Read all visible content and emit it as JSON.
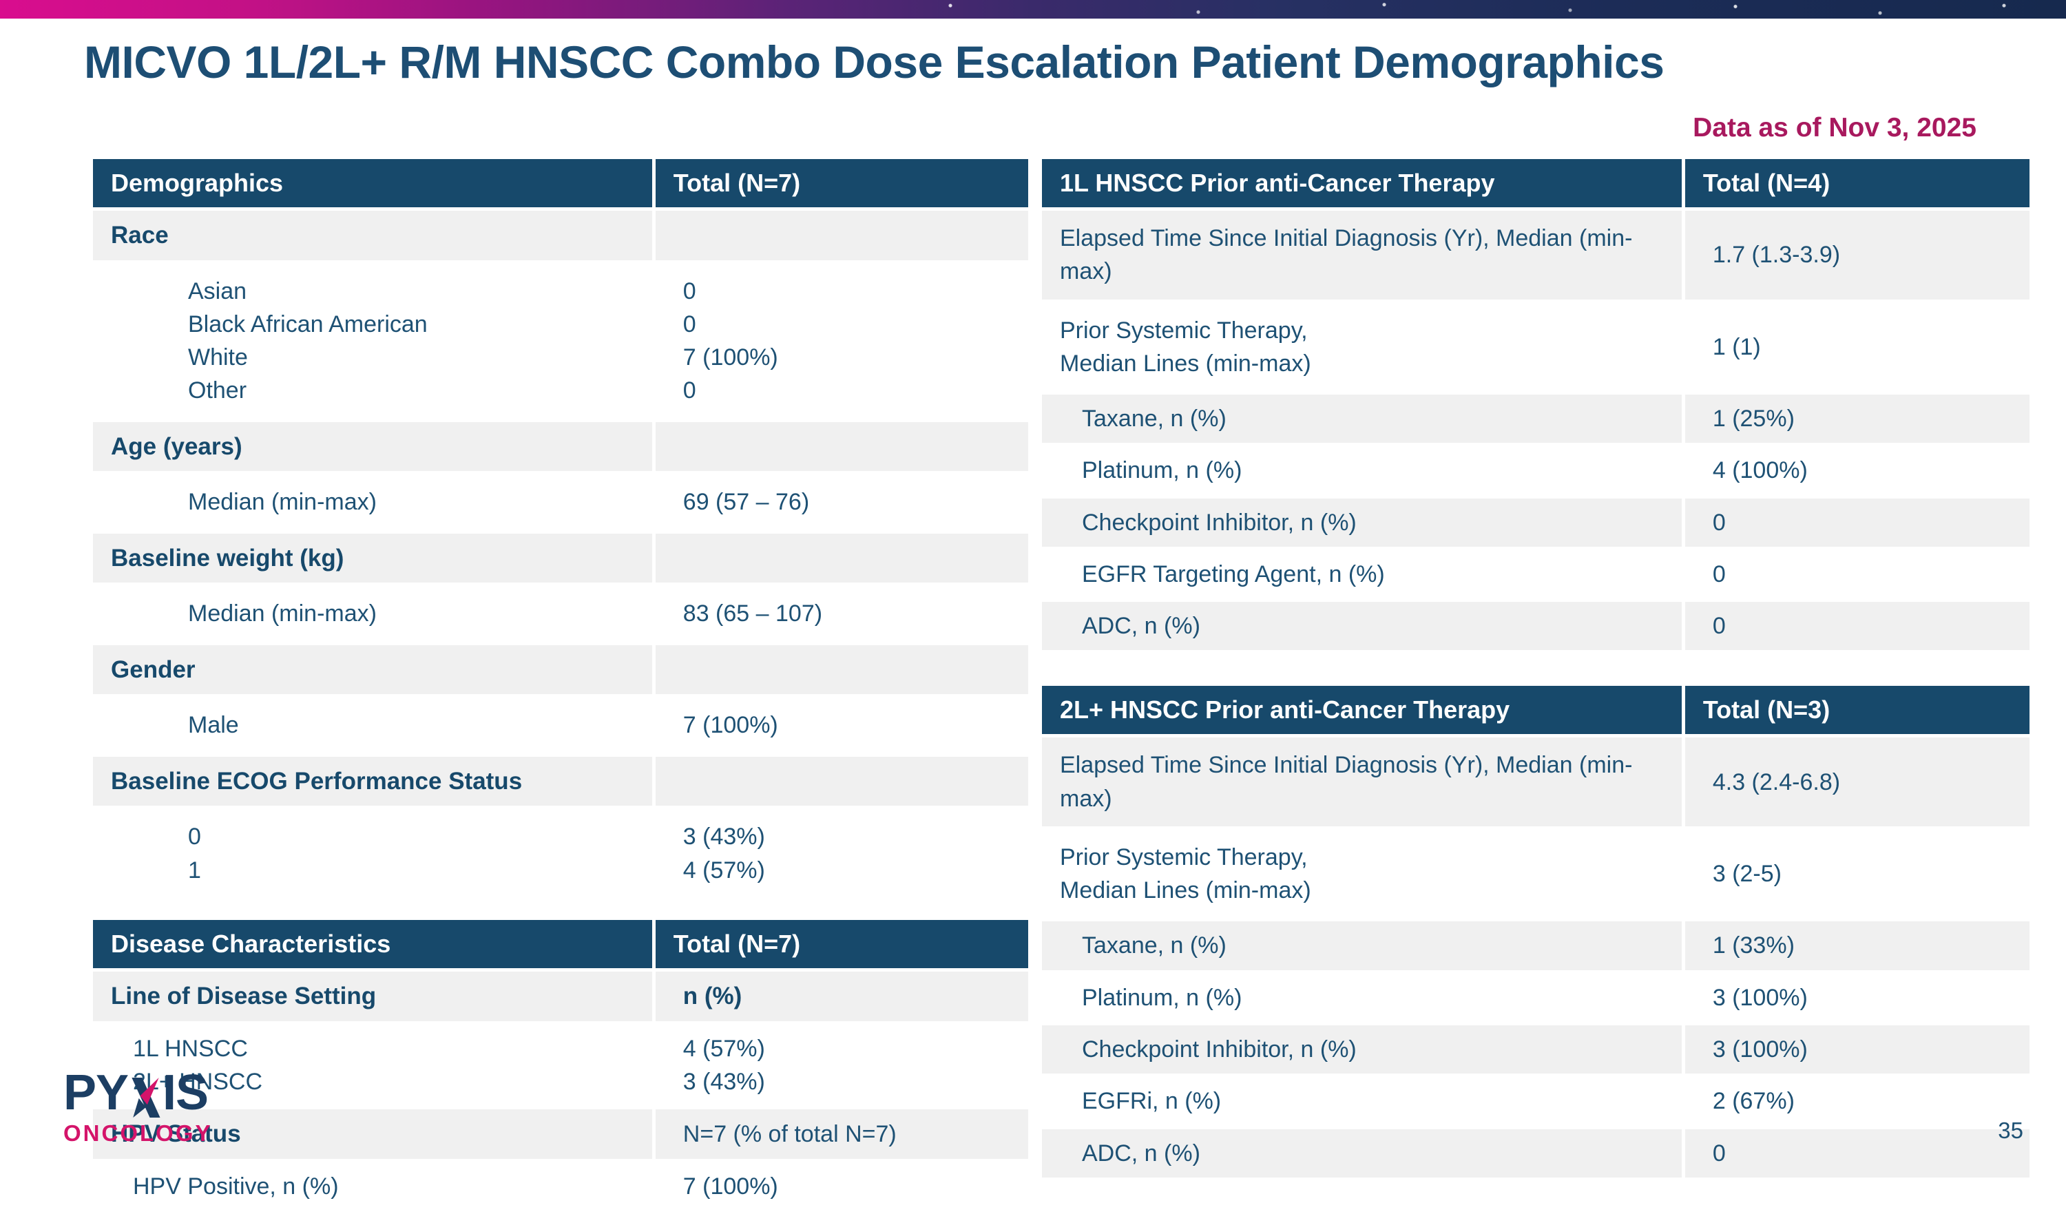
{
  "slide": {
    "title": "MICVO 1L/2L+ R/M HNSCC Combo Dose Escalation Patient Demographics",
    "data_note": "Data as of Nov 3, 2025",
    "page_number": "35"
  },
  "logo": {
    "word_left": "PY",
    "word_right": "IS",
    "subtitle": "ONCOLOGY"
  },
  "colors": {
    "header_navy": "#17496B",
    "body_navy": "#1E5174",
    "title_navy": "#1D4E74",
    "accent_magenta": "#A8195E",
    "logo_pink": "#D4146A",
    "row_gray": "#F0F0F0",
    "bar_pink": "#D90D8E",
    "bar_navy": "#16294E"
  },
  "tables": [
    {
      "id": "demographics",
      "col_split": 60,
      "header": [
        "Demographics",
        "Total (N=7)"
      ],
      "rows": [
        {
          "bg": "gray",
          "bold": true,
          "indent": 0,
          "label": "Race",
          "value": "",
          "value_bold": false,
          "tall": false
        },
        {
          "bg": "white",
          "bold": false,
          "indent": 2,
          "label": "Asian\nBlack African American\nWhite\nOther",
          "value": "0\n0\n7 (100%)\n0",
          "value_bold": false,
          "tall": true
        },
        {
          "bg": "gray",
          "bold": true,
          "indent": 0,
          "label": "Age (years)",
          "value": "",
          "value_bold": false,
          "tall": false
        },
        {
          "bg": "white",
          "bold": false,
          "indent": 2,
          "label": "Median (min-max)",
          "value": "69 (57 – 76)",
          "value_bold": false,
          "tall": true
        },
        {
          "bg": "gray",
          "bold": true,
          "indent": 0,
          "label": "Baseline weight (kg)",
          "value": "",
          "value_bold": false,
          "tall": false
        },
        {
          "bg": "white",
          "bold": false,
          "indent": 2,
          "label": "Median (min-max)",
          "value": "83 (65 – 107)",
          "value_bold": false,
          "tall": true
        },
        {
          "bg": "gray",
          "bold": true,
          "indent": 0,
          "label": "Gender",
          "value": "",
          "value_bold": false,
          "tall": false
        },
        {
          "bg": "white",
          "bold": false,
          "indent": 2,
          "label": "Male",
          "value": "7 (100%)",
          "value_bold": false,
          "tall": true
        },
        {
          "bg": "gray",
          "bold": true,
          "indent": 0,
          "label": "Baseline ECOG Performance Status",
          "value": "",
          "value_bold": false,
          "tall": false
        },
        {
          "bg": "white",
          "bold": false,
          "indent": 2,
          "label": "0\n1",
          "value": "3 (43%)\n4 (57%)",
          "value_bold": false,
          "tall": true
        }
      ]
    },
    {
      "id": "disease",
      "col_split": 60,
      "header": [
        "Disease Characteristics",
        "Total (N=7)"
      ],
      "rows": [
        {
          "bg": "gray",
          "bold": true,
          "indent": 0,
          "label": "Line of Disease Setting",
          "value": "n (%)",
          "value_bold": true,
          "tall": false
        },
        {
          "bg": "white",
          "bold": false,
          "indent": 1,
          "label": "1L HNSCC\n2L+ HNSCC",
          "value": "4 (57%)\n3 (43%)",
          "value_bold": false,
          "tall": false
        },
        {
          "bg": "gray",
          "bold": true,
          "indent": 0,
          "label": "HPV Status",
          "value": "N=7 (% of total N=7)",
          "value_bold": false,
          "tall": false
        },
        {
          "bg": "white",
          "bold": false,
          "indent": 1,
          "label": "HPV Positive, n (%)",
          "value": "7 (100%)",
          "value_bold": false,
          "tall": false
        }
      ]
    },
    {
      "id": "prior-1l",
      "col_split": 65,
      "header": [
        "1L HNSCC Prior anti-Cancer Therapy",
        "Total (N=4)"
      ],
      "rows": [
        {
          "bg": "gray",
          "bold": false,
          "indent": 0,
          "label": "Elapsed Time Since Initial Diagnosis (Yr), Median (min-max)",
          "value": "1.7 (1.3-3.9)",
          "value_bold": false,
          "tall": true
        },
        {
          "bg": "white",
          "bold": false,
          "indent": 0,
          "label": "Prior Systemic Therapy,\nMedian Lines (min-max)",
          "value": "1 (1)",
          "value_bold": false,
          "tall": true
        },
        {
          "bg": "gray",
          "bold": false,
          "indent": 1,
          "label": "Taxane, n (%)",
          "value": "1 (25%)",
          "value_bold": false,
          "tall": false
        },
        {
          "bg": "white",
          "bold": false,
          "indent": 1,
          "label": "Platinum, n (%)",
          "value": "4 (100%)",
          "value_bold": false,
          "tall": false
        },
        {
          "bg": "gray",
          "bold": false,
          "indent": 1,
          "label": "Checkpoint Inhibitor, n (%)",
          "value": "0",
          "value_bold": false,
          "tall": false
        },
        {
          "bg": "white",
          "bold": false,
          "indent": 1,
          "label": "EGFR Targeting Agent, n (%)",
          "value": "0",
          "value_bold": false,
          "tall": false
        },
        {
          "bg": "gray",
          "bold": false,
          "indent": 1,
          "label": "ADC, n (%)",
          "value": "0",
          "value_bold": false,
          "tall": false
        }
      ]
    },
    {
      "id": "prior-2l",
      "col_split": 65,
      "header": [
        "2L+ HNSCC Prior anti-Cancer Therapy",
        "Total (N=3)"
      ],
      "rows": [
        {
          "bg": "gray",
          "bold": false,
          "indent": 0,
          "label": "Elapsed Time Since Initial Diagnosis (Yr), Median (min-max)",
          "value": "4.3 (2.4-6.8)",
          "value_bold": false,
          "tall": true
        },
        {
          "bg": "white",
          "bold": false,
          "indent": 0,
          "label": "Prior Systemic Therapy,\nMedian Lines (min-max)",
          "value": "3 (2-5)",
          "value_bold": false,
          "tall": true
        },
        {
          "bg": "gray",
          "bold": false,
          "indent": 1,
          "label": "Taxane, n (%)",
          "value": "1 (33%)",
          "value_bold": false,
          "tall": false
        },
        {
          "bg": "white",
          "bold": false,
          "indent": 1,
          "label": "Platinum, n (%)",
          "value": "3 (100%)",
          "value_bold": false,
          "tall": false
        },
        {
          "bg": "gray",
          "bold": false,
          "indent": 1,
          "label": "Checkpoint Inhibitor, n (%)",
          "value": "3 (100%)",
          "value_bold": false,
          "tall": false
        },
        {
          "bg": "white",
          "bold": false,
          "indent": 1,
          "label": "EGFRi, n (%)",
          "value": "2 (67%)",
          "value_bold": false,
          "tall": false
        },
        {
          "bg": "gray",
          "bold": false,
          "indent": 1,
          "label": "ADC, n (%)",
          "value": "0",
          "value_bold": false,
          "tall": false
        }
      ]
    }
  ]
}
